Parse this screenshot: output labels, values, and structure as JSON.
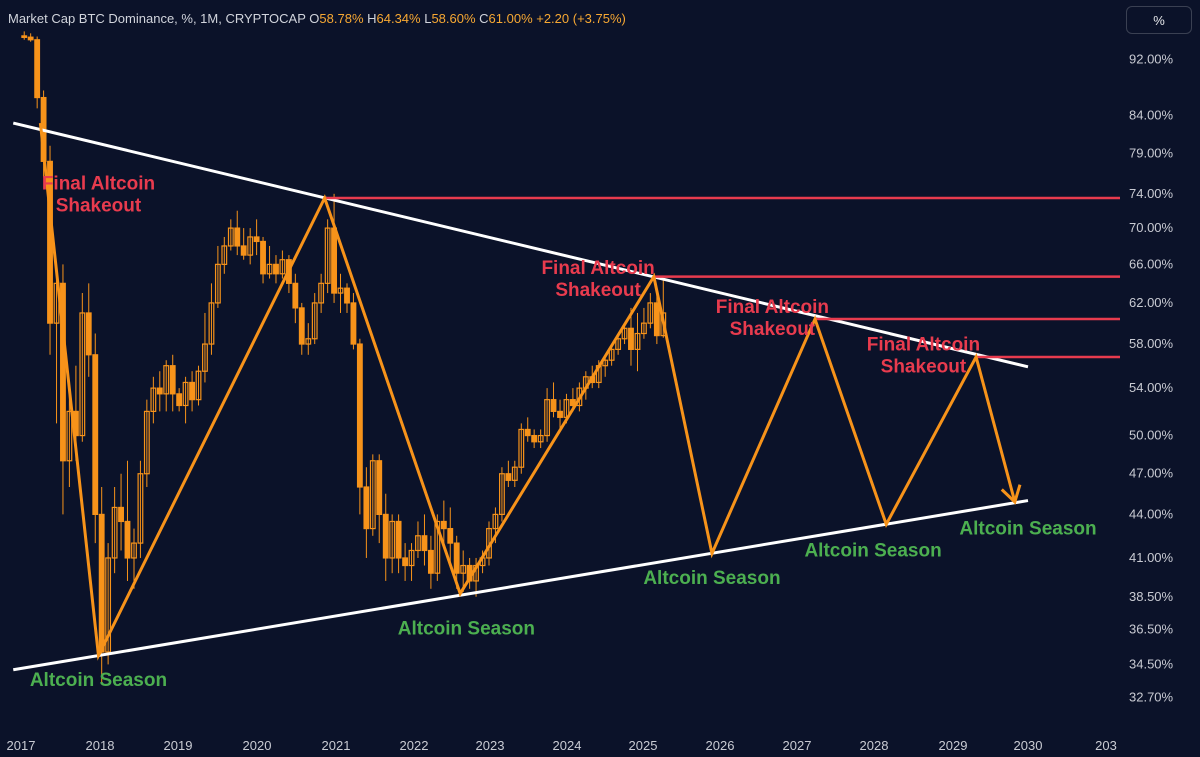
{
  "header": {
    "symbol_label": "Market Cap BTC Dominance, %, 1M, CRYPTOCAP",
    "ohlc": [
      {
        "key": "O",
        "value": "58.78%"
      },
      {
        "key": "H",
        "value": "64.34%"
      },
      {
        "key": "L",
        "value": "58.60%"
      },
      {
        "key": "C",
        "value": "61.00%"
      }
    ],
    "change": "+2.20 (+3.75%)"
  },
  "unit_button": "%",
  "colors": {
    "background": "#0b1229",
    "candles": "#f7931a",
    "zigzag": "#f7931a",
    "trendlines": "#ffffff",
    "resistance": "#e83b4e",
    "label_red": "#e83b4e",
    "label_green": "#4caf50",
    "header_value": "#f7a833",
    "axis_text": "#c9cbd3"
  },
  "chart_data": {
    "type": "candlestick",
    "interval": "1M",
    "y_scale": "log",
    "ylim": [
      31.5,
      99
    ],
    "xlim": [
      2017.0,
      2030.9
    ],
    "y_ticks": [
      "92.00%",
      "84.00%",
      "79.00%",
      "74.00%",
      "70.00%",
      "66.00%",
      "62.00%",
      "58.00%",
      "54.00%",
      "50.00%",
      "47.00%",
      "44.00%",
      "41.00%",
      "38.50%",
      "36.50%",
      "34.50%",
      "32.70%"
    ],
    "x_ticks": [
      "2017",
      "2018",
      "2019",
      "2020",
      "2021",
      "2022",
      "2023",
      "2024",
      "2025",
      "2026",
      "2027",
      "2028",
      "2029",
      "2030",
      "203"
    ],
    "candles": [
      [
        2017.0,
        95.6,
        96.3,
        95.0,
        95.4
      ],
      [
        2017.083,
        95.4,
        96.0,
        94.7,
        95.0
      ],
      [
        2017.167,
        95.0,
        95.5,
        85.0,
        86.5
      ],
      [
        2017.25,
        86.5,
        87.5,
        76.0,
        78.0
      ],
      [
        2017.333,
        78.0,
        80.0,
        57.0,
        60.0
      ],
      [
        2017.417,
        60.0,
        66.0,
        51.0,
        64.0
      ],
      [
        2017.5,
        64.0,
        66.0,
        44.0,
        48.0
      ],
      [
        2017.583,
        48.0,
        54.0,
        46.0,
        52.0
      ],
      [
        2017.667,
        52.0,
        56.0,
        48.0,
        50.0
      ],
      [
        2017.75,
        50.0,
        63.0,
        49.5,
        61.0
      ],
      [
        2017.833,
        61.0,
        64.0,
        55.0,
        57.0
      ],
      [
        2017.917,
        57.0,
        59.0,
        42.0,
        44.0
      ],
      [
        2018.0,
        44.0,
        46.0,
        33.5,
        35.2
      ],
      [
        2018.083,
        35.2,
        42.0,
        34.5,
        41.0
      ],
      [
        2018.167,
        41.0,
        46.0,
        40.0,
        44.5
      ],
      [
        2018.25,
        44.5,
        47.0,
        41.5,
        43.5
      ],
      [
        2018.333,
        43.5,
        48.0,
        39.5,
        41.0
      ],
      [
        2018.417,
        41.0,
        43.0,
        39.0,
        42.0
      ],
      [
        2018.5,
        42.0,
        48.0,
        41.0,
        47.0
      ],
      [
        2018.583,
        47.0,
        53.0,
        46.0,
        52.0
      ],
      [
        2018.667,
        52.0,
        55.0,
        51.0,
        54.0
      ],
      [
        2018.75,
        54.0,
        55.5,
        52.0,
        53.5
      ],
      [
        2018.833,
        53.5,
        56.5,
        52.0,
        56.0
      ],
      [
        2018.917,
        56.0,
        57.0,
        52.0,
        53.5
      ],
      [
        2019.0,
        53.5,
        54.0,
        52.0,
        52.5
      ],
      [
        2019.083,
        52.5,
        55.0,
        51.0,
        54.5
      ],
      [
        2019.167,
        54.5,
        55.5,
        52.0,
        53.0
      ],
      [
        2019.25,
        53.0,
        56.0,
        52.5,
        55.5
      ],
      [
        2019.333,
        55.5,
        61.0,
        54.5,
        58.0
      ],
      [
        2019.417,
        58.0,
        64.0,
        57.0,
        62.0
      ],
      [
        2019.5,
        62.0,
        68.0,
        61.5,
        66.0
      ],
      [
        2019.583,
        66.0,
        69.0,
        65.0,
        68.0
      ],
      [
        2019.667,
        68.0,
        71.0,
        67.5,
        70.0
      ],
      [
        2019.75,
        70.0,
        72.0,
        67.0,
        68.0
      ],
      [
        2019.833,
        68.0,
        70.0,
        66.5,
        67.0
      ],
      [
        2019.917,
        67.0,
        70.0,
        66.0,
        69.0
      ],
      [
        2020.0,
        69.0,
        71.0,
        67.0,
        68.5
      ],
      [
        2020.083,
        68.5,
        69.0,
        64.0,
        65.0
      ],
      [
        2020.167,
        65.0,
        68.0,
        64.5,
        66.0
      ],
      [
        2020.25,
        66.0,
        67.0,
        64.0,
        65.0
      ],
      [
        2020.333,
        65.0,
        67.5,
        64.5,
        66.5
      ],
      [
        2020.417,
        66.5,
        67.0,
        63.0,
        64.0
      ],
      [
        2020.5,
        64.0,
        65.0,
        60.0,
        61.5
      ],
      [
        2020.583,
        61.5,
        62.0,
        57.0,
        58.0
      ],
      [
        2020.667,
        58.0,
        60.0,
        57.0,
        58.5
      ],
      [
        2020.75,
        58.5,
        63.0,
        58.0,
        62.0
      ],
      [
        2020.833,
        62.0,
        65.0,
        61.0,
        64.0
      ],
      [
        2020.917,
        64.0,
        71.0,
        63.0,
        70.0
      ],
      [
        2021.0,
        70.0,
        74.0,
        62.0,
        63.0
      ],
      [
        2021.083,
        63.0,
        65.0,
        61.0,
        63.5
      ],
      [
        2021.167,
        63.5,
        64.0,
        61.0,
        62.0
      ],
      [
        2021.25,
        62.0,
        63.0,
        57.5,
        58.0
      ],
      [
        2021.333,
        58.0,
        58.5,
        44.0,
        46.0
      ],
      [
        2021.417,
        46.0,
        47.5,
        41.0,
        43.0
      ],
      [
        2021.5,
        43.0,
        48.5,
        42.5,
        48.0
      ],
      [
        2021.583,
        48.0,
        48.5,
        42.0,
        44.0
      ],
      [
        2021.667,
        44.0,
        45.5,
        39.5,
        41.0
      ],
      [
        2021.75,
        41.0,
        44.0,
        40.0,
        43.5
      ],
      [
        2021.833,
        43.5,
        44.0,
        40.0,
        41.0
      ],
      [
        2021.917,
        41.0,
        42.0,
        39.5,
        40.5
      ],
      [
        2022.0,
        40.5,
        42.0,
        39.5,
        41.5
      ],
      [
        2022.083,
        41.5,
        43.5,
        41.0,
        42.5
      ],
      [
        2022.167,
        42.5,
        44.0,
        40.5,
        41.5
      ],
      [
        2022.25,
        41.5,
        42.5,
        39.0,
        40.0
      ],
      [
        2022.333,
        40.0,
        44.0,
        39.5,
        43.5
      ],
      [
        2022.417,
        43.5,
        45.0,
        42.0,
        43.0
      ],
      [
        2022.5,
        43.0,
        44.5,
        40.5,
        42.0
      ],
      [
        2022.583,
        42.0,
        42.5,
        39.0,
        40.0
      ],
      [
        2022.667,
        40.0,
        41.5,
        38.8,
        40.5
      ],
      [
        2022.75,
        40.5,
        41.0,
        39.0,
        39.5
      ],
      [
        2022.833,
        39.5,
        41.0,
        38.5,
        40.5
      ],
      [
        2022.917,
        40.5,
        41.5,
        40.0,
        41.0
      ],
      [
        2023.0,
        41.0,
        43.5,
        40.5,
        43.0
      ],
      [
        2023.083,
        43.0,
        44.5,
        42.0,
        44.0
      ],
      [
        2023.167,
        44.0,
        47.5,
        43.5,
        47.0
      ],
      [
        2023.25,
        47.0,
        48.0,
        46.0,
        46.5
      ],
      [
        2023.333,
        46.5,
        48.0,
        46.0,
        47.5
      ],
      [
        2023.417,
        47.5,
        51.0,
        47.0,
        50.5
      ],
      [
        2023.5,
        50.5,
        51.5,
        49.5,
        50.0
      ],
      [
        2023.583,
        50.0,
        50.5,
        49.0,
        49.5
      ],
      [
        2023.667,
        49.5,
        50.5,
        49.0,
        50.0
      ],
      [
        2023.75,
        50.0,
        54.0,
        49.5,
        53.0
      ],
      [
        2023.833,
        53.0,
        54.5,
        51.5,
        52.0
      ],
      [
        2023.917,
        52.0,
        53.0,
        50.5,
        51.5
      ],
      [
        2024.0,
        51.5,
        53.5,
        51.0,
        53.0
      ],
      [
        2024.083,
        53.0,
        54.0,
        52.0,
        52.5
      ],
      [
        2024.167,
        52.5,
        54.5,
        52.0,
        54.0
      ],
      [
        2024.25,
        54.0,
        55.5,
        53.0,
        55.0
      ],
      [
        2024.333,
        55.0,
        56.0,
        54.0,
        54.5
      ],
      [
        2024.417,
        54.5,
        56.5,
        54.0,
        56.0
      ],
      [
        2024.5,
        56.0,
        57.0,
        55.0,
        56.5
      ],
      [
        2024.583,
        56.5,
        58.0,
        56.0,
        57.5
      ],
      [
        2024.667,
        57.5,
        59.0,
        57.0,
        58.5
      ],
      [
        2024.75,
        58.5,
        60.0,
        58.0,
        59.5
      ],
      [
        2024.833,
        59.5,
        61.5,
        56.0,
        57.5
      ],
      [
        2024.917,
        57.5,
        61.0,
        55.5,
        59.0
      ],
      [
        2025.0,
        59.0,
        61.5,
        58.5,
        60.0
      ],
      [
        2025.083,
        60.0,
        63.0,
        59.5,
        62.0
      ],
      [
        2025.167,
        62.0,
        63.5,
        58.0,
        58.8
      ],
      [
        2025.25,
        58.8,
        64.3,
        58.6,
        61.0
      ]
    ],
    "zigzag_path": [
      [
        2017.25,
        83.0
      ],
      [
        2018.0,
        35.0
      ],
      [
        2020.92,
        73.5
      ],
      [
        2022.67,
        38.7
      ],
      [
        2025.17,
        64.7
      ],
      [
        2025.92,
        41.3
      ],
      [
        2027.25,
        60.4
      ],
      [
        2028.17,
        43.3
      ],
      [
        2029.33,
        56.8
      ],
      [
        2029.83,
        44.9
      ]
    ],
    "upper_trendline": [
      [
        2016.9,
        83.0
      ],
      [
        2030.0,
        55.9
      ]
    ],
    "lower_trendline": [
      [
        2016.9,
        34.2
      ],
      [
        2030.0,
        45.0
      ]
    ],
    "resistance_levels": [
      {
        "y": 73.5,
        "x_start": 2020.92
      },
      {
        "y": 64.7,
        "x_start": 2025.17
      },
      {
        "y": 60.4,
        "x_start": 2027.25
      },
      {
        "y": 56.8,
        "x_start": 2029.33
      }
    ],
    "annotations": [
      {
        "text": [
          "Final Altcoin",
          "Shakeout"
        ],
        "x": 2018.0,
        "y": 74.5,
        "color": "red"
      },
      {
        "text": [
          "Final Altcoin",
          "Shakeout"
        ],
        "x": 2024.45,
        "y": 65.0,
        "color": "red"
      },
      {
        "text": [
          "Final Altcoin",
          "Shakeout"
        ],
        "x": 2026.7,
        "y": 61.0,
        "color": "red"
      },
      {
        "text": [
          "Final Altcoin",
          "Shakeout"
        ],
        "x": 2028.65,
        "y": 57.4,
        "color": "red"
      },
      {
        "text": [
          "Altcoin Season"
        ],
        "x": 2018.0,
        "y": 33.3,
        "color": "green"
      },
      {
        "text": [
          "Altcoin Season"
        ],
        "x": 2022.75,
        "y": 36.2,
        "color": "green"
      },
      {
        "text": [
          "Altcoin Season"
        ],
        "x": 2025.92,
        "y": 39.3,
        "color": "green"
      },
      {
        "text": [
          "Altcoin Season"
        ],
        "x": 2028.0,
        "y": 41.1,
        "color": "green"
      },
      {
        "text": [
          "Altcoin Season"
        ],
        "x": 2030.0,
        "y": 42.6,
        "color": "green"
      }
    ]
  }
}
